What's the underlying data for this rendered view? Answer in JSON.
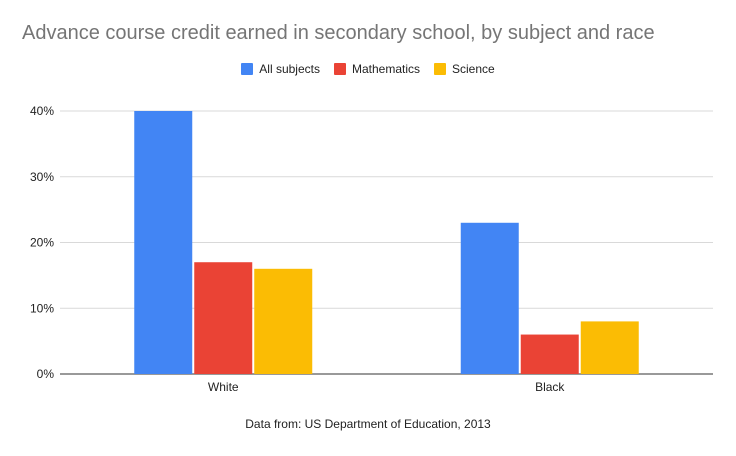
{
  "chart_data": {
    "type": "bar",
    "title": "Advance course credit earned in secondary school, by subject and race",
    "categories": [
      "White",
      "Black"
    ],
    "series": [
      {
        "name": "All subjects",
        "values": [
          40,
          23
        ],
        "color": "#4285f4"
      },
      {
        "name": "Mathematics",
        "values": [
          17,
          6
        ],
        "color": "#ea4335"
      },
      {
        "name": "Science",
        "values": [
          16,
          8
        ],
        "color": "#fbbc04"
      }
    ],
    "ylim": [
      0,
      40
    ],
    "yticks": [
      0,
      10,
      20,
      30,
      40
    ],
    "ytick_labels": [
      "0%",
      "10%",
      "20%",
      "30%",
      "40%"
    ],
    "xlabel": "",
    "ylabel": "",
    "grid": true,
    "legend_position": "top-center",
    "source_note": "Data from: US Department of Education, 2013"
  }
}
